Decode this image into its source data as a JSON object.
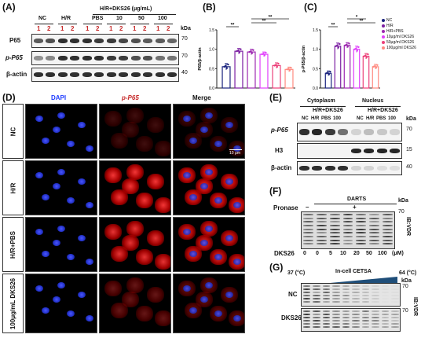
{
  "panels": {
    "A": {
      "label": "(A)",
      "group_header": "H/R+DKS26 (μg/mL)",
      "groups": [
        "NC",
        "H/R",
        "PBS",
        "10",
        "50",
        "100"
      ],
      "replicates": [
        "1",
        "2"
      ],
      "unit": "kDa",
      "rows": [
        {
          "name": "P65",
          "kda": "70"
        },
        {
          "name": "p-P65",
          "kda": "70"
        },
        {
          "name": "β-actin",
          "kda": "40"
        }
      ]
    },
    "B": {
      "label": "(B)",
      "stars": [
        "**",
        "**",
        "**"
      ]
    },
    "C": {
      "label": "(C)",
      "stars": [
        "**",
        "**",
        "*"
      ],
      "legend": [
        "NC",
        "H/R",
        "H/R+PBS",
        "10μg/ml DKS26",
        "50μg/ml DKS26",
        "100μg/ml DKS26"
      ]
    },
    "D": {
      "label": "(D)",
      "columns": [
        "DAPI",
        "p-P65",
        "Merge"
      ],
      "rows": [
        "NC",
        "H/R",
        "H/R+PBS",
        "100μg/mL DKS26"
      ],
      "scalebar": "10 μm"
    },
    "E": {
      "label": "(E)",
      "fractions": [
        "Cytoplasm",
        "Nucleus"
      ],
      "treatment": "H/R+DKS26",
      "lanes": [
        "NC",
        "H/R",
        "PBS",
        "100"
      ],
      "unit": "kDa",
      "rows": [
        {
          "name": "p-P65",
          "kda": "70"
        },
        {
          "name": "H3",
          "kda": "15"
        },
        {
          "name": "β-actin",
          "kda": "40"
        }
      ]
    },
    "F": {
      "label": "(F)",
      "assay": "DARTS",
      "pronase_label": "Pronase",
      "minus": "–",
      "plus": "+",
      "unit": "kDa",
      "kda": "70",
      "x_label": "DKS26",
      "doses": [
        "0",
        "0",
        "5",
        "10",
        "20",
        "50",
        "100"
      ],
      "dose_unit": "(μM)",
      "ib": "IB:VDR"
    },
    "G": {
      "label": "(G)",
      "temp_low": "37 (°C)",
      "temp_high": "64 (°C)",
      "assay": "In-cell CETSA",
      "unit": "kDa",
      "rows": [
        {
          "name": "NC",
          "kda": "70"
        },
        {
          "name": "DKS26",
          "kda": "70"
        }
      ],
      "ib": "IB:VDR"
    }
  },
  "chart_data": [
    {
      "type": "bar",
      "panel": "B",
      "title": "",
      "xlabel": "",
      "ylabel": "P65/β-actin",
      "ylim": [
        0,
        1.5
      ],
      "yticks": [
        "0.0",
        "0.5",
        "1.0",
        "1.5"
      ],
      "categories": [
        "NC",
        "H/R",
        "H/R+PBS",
        "10μg/ml DKS26",
        "50μg/ml DKS26",
        "100μg/ml DKS26"
      ],
      "values": [
        0.55,
        0.95,
        0.93,
        0.87,
        0.58,
        0.48
      ],
      "errors": [
        0.08,
        0.07,
        0.07,
        0.06,
        0.07,
        0.06
      ],
      "colors": [
        "#1a237e",
        "#7b1fa2",
        "#9c27b0",
        "#e040fb",
        "#ec407a",
        "#ff8a80"
      ]
    },
    {
      "type": "bar",
      "panel": "C",
      "title": "",
      "xlabel": "",
      "ylabel": "p-P65/β-actin",
      "ylim": [
        0,
        1.5
      ],
      "yticks": [
        "0.0",
        "0.5",
        "1.0",
        "1.5"
      ],
      "categories": [
        "NC",
        "H/R",
        "H/R+PBS",
        "10μg/ml DKS26",
        "50μg/ml DKS26",
        "100μg/ml DKS26"
      ],
      "values": [
        0.38,
        1.08,
        1.1,
        1.0,
        0.82,
        0.55
      ],
      "errors": [
        0.06,
        0.08,
        0.07,
        0.08,
        0.07,
        0.06
      ],
      "colors": [
        "#1a237e",
        "#7b1fa2",
        "#9c27b0",
        "#e040fb",
        "#ec407a",
        "#ff8a80"
      ]
    }
  ]
}
